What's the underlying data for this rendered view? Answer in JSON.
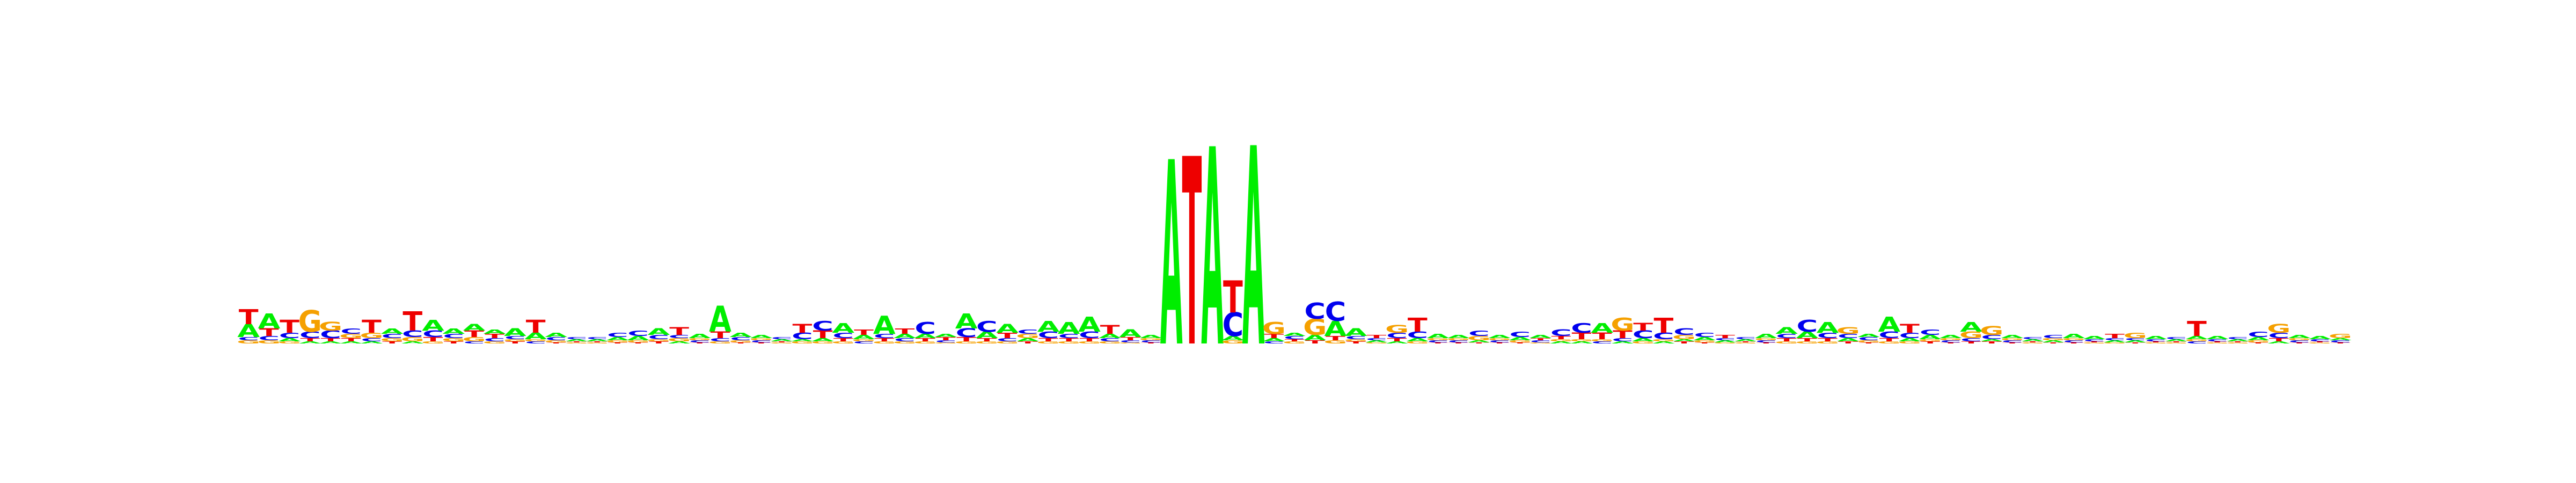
{
  "chart_data": {
    "type": "sequence_logo",
    "title": "",
    "xlabel": "",
    "ylabel": "",
    "ylim": [
      0,
      2
    ],
    "alphabet": [
      "A",
      "C",
      "G",
      "T"
    ],
    "colors": {
      "A": "#00ee00",
      "C": "#0000ee",
      "G": "#f5a000",
      "T": "#ee0000"
    },
    "positions": [
      {
        "T": 0.14,
        "A": 0.12,
        "G": 0.03,
        "C": 0.03
      },
      {
        "A": 0.14,
        "T": 0.07,
        "C": 0.04,
        "G": 0.03
      },
      {
        "T": 0.12,
        "C": 0.05,
        "A": 0.03,
        "G": 0.02
      },
      {
        "G": 0.2,
        "C": 0.06,
        "T": 0.03,
        "A": 0.02
      },
      {
        "G": 0.08,
        "C": 0.07,
        "T": 0.03,
        "A": 0.02
      },
      {
        "C": 0.05,
        "G": 0.04,
        "T": 0.03,
        "A": 0.02
      },
      {
        "T": 0.12,
        "G": 0.05,
        "C": 0.03,
        "A": 0.02
      },
      {
        "A": 0.05,
        "C": 0.04,
        "G": 0.03,
        "T": 0.02
      },
      {
        "T": 0.18,
        "C": 0.06,
        "G": 0.04,
        "A": 0.02
      },
      {
        "A": 0.1,
        "C": 0.06,
        "T": 0.04,
        "G": 0.02
      },
      {
        "A": 0.05,
        "C": 0.04,
        "G": 0.03,
        "T": 0.02
      },
      {
        "T": 0.06,
        "A": 0.06,
        "G": 0.04,
        "C": 0.02
      },
      {
        "T": 0.04,
        "A": 0.04,
        "C": 0.03,
        "G": 0.02
      },
      {
        "A": 0.07,
        "C": 0.03,
        "T": 0.02,
        "G": 0.02
      },
      {
        "T": 0.12,
        "A": 0.06,
        "C": 0.02,
        "G": 0.02
      },
      {
        "A": 0.04,
        "C": 0.03,
        "G": 0.02,
        "T": 0.01
      },
      {
        "A": 0.02,
        "C": 0.02,
        "G": 0.01,
        "T": 0.01
      },
      {
        "A": 0.02,
        "C": 0.02,
        "G": 0.01,
        "T": 0.01
      },
      {
        "C": 0.04,
        "A": 0.03,
        "G": 0.02,
        "T": 0.01
      },
      {
        "C": 0.05,
        "A": 0.04,
        "G": 0.02,
        "T": 0.01
      },
      {
        "A": 0.06,
        "C": 0.04,
        "T": 0.02,
        "G": 0.02
      },
      {
        "T": 0.07,
        "G": 0.03,
        "C": 0.03,
        "A": 0.02
      },
      {
        "A": 0.04,
        "C": 0.02,
        "G": 0.02,
        "T": 0.01
      },
      {
        "A": 0.24,
        "T": 0.06,
        "C": 0.03,
        "G": 0.02
      },
      {
        "A": 0.04,
        "C": 0.03,
        "G": 0.02,
        "T": 0.01
      },
      {
        "A": 0.03,
        "C": 0.02,
        "G": 0.02,
        "T": 0.01
      },
      {
        "A": 0.02,
        "C": 0.02,
        "G": 0.01,
        "T": 0.01
      },
      {
        "T": 0.08,
        "C": 0.06,
        "G": 0.02,
        "A": 0.02
      },
      {
        "C": 0.09,
        "T": 0.07,
        "A": 0.03,
        "G": 0.02
      },
      {
        "A": 0.09,
        "C": 0.05,
        "T": 0.03,
        "G": 0.02
      },
      {
        "T": 0.05,
        "A": 0.04,
        "C": 0.02,
        "G": 0.02
      },
      {
        "A": 0.17,
        "C": 0.04,
        "T": 0.03,
        "G": 0.02
      },
      {
        "T": 0.05,
        "A": 0.04,
        "C": 0.03,
        "G": 0.02
      },
      {
        "C": 0.11,
        "A": 0.04,
        "T": 0.03,
        "G": 0.02
      },
      {
        "T": 0.03,
        "A": 0.03,
        "C": 0.02,
        "G": 0.01
      },
      {
        "A": 0.14,
        "C": 0.08,
        "T": 0.04,
        "G": 0.02
      },
      {
        "C": 0.1,
        "A": 0.06,
        "T": 0.03,
        "G": 0.02
      },
      {
        "A": 0.08,
        "T": 0.05,
        "C": 0.03,
        "G": 0.02
      },
      {
        "G": 0.04,
        "C": 0.04,
        "A": 0.03,
        "T": 0.02
      },
      {
        "A": 0.1,
        "C": 0.06,
        "T": 0.03,
        "G": 0.02
      },
      {
        "A": 0.11,
        "C": 0.04,
        "T": 0.03,
        "G": 0.02
      },
      {
        "A": 0.14,
        "C": 0.06,
        "T": 0.03,
        "G": 0.02
      },
      {
        "T": 0.08,
        "A": 0.04,
        "C": 0.03,
        "G": 0.02
      },
      {
        "A": 0.07,
        "T": 0.03,
        "C": 0.02,
        "G": 0.01
      },
      {
        "A": 0.03,
        "C": 0.02,
        "G": 0.02,
        "T": 0.01
      },
      {
        "A": 1.72
      },
      {
        "T": 1.75
      },
      {
        "A": 1.84
      },
      {
        "C": 0.22,
        "T": 0.3,
        "A": 0.04,
        "G": 0.03
      },
      {
        "A": 1.85
      },
      {
        "G": 0.11,
        "T": 0.04,
        "A": 0.03,
        "C": 0.02
      },
      {
        "C": 0.03,
        "A": 0.03,
        "G": 0.02,
        "T": 0.02
      },
      {
        "G": 0.15,
        "C": 0.15,
        "A": 0.05,
        "T": 0.03
      },
      {
        "C": 0.18,
        "A": 0.14,
        "T": 0.04,
        "G": 0.03
      },
      {
        "A": 0.07,
        "C": 0.03,
        "T": 0.02,
        "G": 0.02
      },
      {
        "T": 0.03,
        "A": 0.02,
        "C": 0.02,
        "G": 0.01
      },
      {
        "G": 0.07,
        "C": 0.05,
        "T": 0.03,
        "A": 0.02
      },
      {
        "T": 0.13,
        "C": 0.06,
        "A": 0.03,
        "G": 0.02
      },
      {
        "A": 0.04,
        "C": 0.02,
        "G": 0.02,
        "T": 0.01
      },
      {
        "A": 0.03,
        "C": 0.02,
        "G": 0.02,
        "T": 0.01
      },
      {
        "C": 0.05,
        "G": 0.04,
        "A": 0.02,
        "T": 0.01
      },
      {
        "A": 0.03,
        "C": 0.02,
        "G": 0.02,
        "T": 0.01
      },
      {
        "C": 0.05,
        "A": 0.03,
        "G": 0.02,
        "T": 0.01
      },
      {
        "A": 0.03,
        "C": 0.02,
        "T": 0.02,
        "G": 0.01
      },
      {
        "C": 0.06,
        "T": 0.03,
        "A": 0.02,
        "G": 0.02
      },
      {
        "C": 0.09,
        "T": 0.06,
        "A": 0.02,
        "G": 0.02
      },
      {
        "A": 0.09,
        "T": 0.06,
        "C": 0.02,
        "G": 0.02
      },
      {
        "G": 0.12,
        "T": 0.07,
        "C": 0.03,
        "A": 0.02
      },
      {
        "C": 0.07,
        "T": 0.07,
        "A": 0.03,
        "G": 0.02
      },
      {
        "T": 0.14,
        "C": 0.06,
        "A": 0.02,
        "G": 0.02
      },
      {
        "C": 0.06,
        "G": 0.04,
        "T": 0.02,
        "A": 0.02
      },
      {
        "C": 0.04,
        "A": 0.03,
        "G": 0.02,
        "T": 0.01
      },
      {
        "T": 0.03,
        "A": 0.02,
        "C": 0.02,
        "G": 0.01
      },
      {
        "A": 0.02,
        "C": 0.02,
        "G": 0.01,
        "T": 0.01
      },
      {
        "A": 0.04,
        "C": 0.02,
        "G": 0.02,
        "T": 0.01
      },
      {
        "A": 0.06,
        "C": 0.04,
        "T": 0.03,
        "G": 0.02
      },
      {
        "C": 0.11,
        "A": 0.06,
        "T": 0.03,
        "G": 0.02
      },
      {
        "A": 0.1,
        "C": 0.05,
        "T": 0.03,
        "G": 0.02
      },
      {
        "G": 0.06,
        "C": 0.04,
        "A": 0.03,
        "T": 0.02
      },
      {
        "C": 0.03,
        "A": 0.03,
        "G": 0.02,
        "T": 0.01
      },
      {
        "A": 0.14,
        "C": 0.06,
        "T": 0.03,
        "G": 0.02
      },
      {
        "T": 0.08,
        "C": 0.05,
        "A": 0.03,
        "G": 0.02
      },
      {
        "C": 0.05,
        "A": 0.04,
        "T": 0.02,
        "G": 0.02
      },
      {
        "A": 0.03,
        "C": 0.02,
        "G": 0.02,
        "T": 0.01
      },
      {
        "A": 0.09,
        "G": 0.06,
        "C": 0.03,
        "T": 0.02
      },
      {
        "G": 0.08,
        "C": 0.04,
        "T": 0.02,
        "A": 0.02
      },
      {
        "A": 0.03,
        "C": 0.02,
        "G": 0.02,
        "T": 0.01
      },
      {
        "A": 0.02,
        "C": 0.02,
        "G": 0.01,
        "T": 0.01
      },
      {
        "C": 0.03,
        "A": 0.02,
        "G": 0.02,
        "T": 0.01
      },
      {
        "A": 0.04,
        "C": 0.02,
        "G": 0.02,
        "T": 0.01
      },
      {
        "A": 0.03,
        "C": 0.02,
        "G": 0.01,
        "T": 0.01
      },
      {
        "T": 0.04,
        "A": 0.02,
        "C": 0.02,
        "G": 0.01
      },
      {
        "G": 0.05,
        "A": 0.02,
        "C": 0.02,
        "T": 0.01
      },
      {
        "A": 0.03,
        "C": 0.02,
        "G": 0.01,
        "T": 0.01
      },
      {
        "A": 0.02,
        "C": 0.02,
        "G": 0.01,
        "T": 0.01
      },
      {
        "T": 0.14,
        "A": 0.03,
        "C": 0.02,
        "G": 0.02
      },
      {
        "A": 0.03,
        "C": 0.02,
        "G": 0.01,
        "T": 0.01
      },
      {
        "A": 0.02,
        "C": 0.02,
        "G": 0.01,
        "T": 0.01
      },
      {
        "C": 0.05,
        "A": 0.03,
        "G": 0.02,
        "T": 0.01
      },
      {
        "G": 0.08,
        "C": 0.05,
        "T": 0.03,
        "A": 0.02
      },
      {
        "A": 0.03,
        "C": 0.02,
        "G": 0.02,
        "T": 0.01
      },
      {
        "A": 0.03,
        "C": 0.02,
        "G": 0.01,
        "T": 0.01
      },
      {
        "G": 0.04,
        "C": 0.02,
        "A": 0.02,
        "T": 0.01
      }
    ]
  }
}
